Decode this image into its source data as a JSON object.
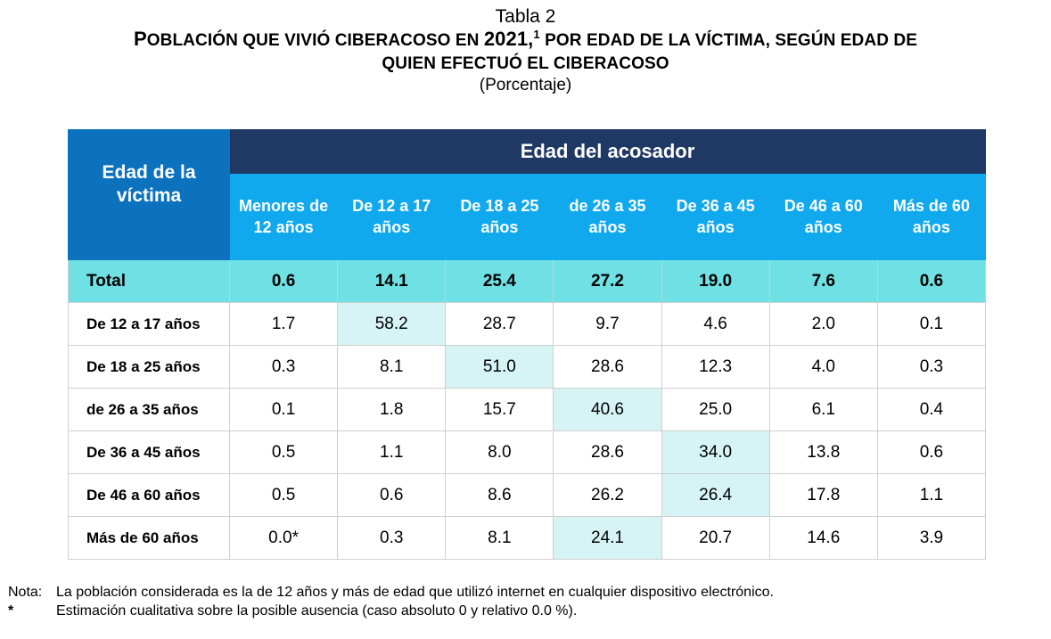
{
  "caption": {
    "number": "Tabla 2",
    "title_part1": "Población que vivió ciberacoso en 2021,",
    "title_sup": "1",
    "title_part2": " por edad de la víctima, según edad de quien efectuó el ciberacoso",
    "title_line1_a": "P",
    "title_line1_b": "OBLACIÓN QUE VIVIÓ CIBERACOSO EN ",
    "title_line1_c": "2021,",
    "title_line1_d": " POR EDAD DE LA VÍCTIMA, SEGÚN EDAD DE",
    "title_line2": "QUIEN EFECTUÓ EL CIBERACOSO",
    "subtitle": "(Porcentaje)"
  },
  "table": {
    "corner_label": "Edad de la víctima",
    "group_header": "Edad del acosador",
    "columns": [
      "Menores de 12 años",
      "De 12 a 17 años",
      "De 18 a 25 años",
      "de 26 a 35 años",
      "De 36 a 45 años",
      "De 46 a 60 años",
      "Más de 60 años"
    ],
    "total": {
      "label": "Total",
      "values": [
        "0.6",
        "14.1",
        "25.4",
        "27.2",
        "19.0",
        "7.6",
        "0.6"
      ]
    },
    "rows": [
      {
        "label": "De 12 a 17 años",
        "values": [
          "1.7",
          "58.2",
          "28.7",
          "9.7",
          "4.6",
          "2.0",
          "0.1"
        ],
        "highlight": 1
      },
      {
        "label": "De 18 a 25 años",
        "values": [
          "0.3",
          "8.1",
          "51.0",
          "28.6",
          "12.3",
          "4.0",
          "0.3"
        ],
        "highlight": 2
      },
      {
        "label": "de 26 a 35 años",
        "values": [
          "0.1",
          "1.8",
          "15.7",
          "40.6",
          "25.0",
          "6.1",
          "0.4"
        ],
        "highlight": 3
      },
      {
        "label": "De 36 a 45 años",
        "values": [
          "0.5",
          "1.1",
          "8.0",
          "28.6",
          "34.0",
          "13.8",
          "0.6"
        ],
        "highlight": 4
      },
      {
        "label": "De 46 a 60 años",
        "values": [
          "0.5",
          "0.6",
          "8.6",
          "26.2",
          "26.4",
          "17.8",
          "1.1"
        ],
        "highlight": 4
      },
      {
        "label": "Más de 60 años",
        "values": [
          "0.0*",
          "0.3",
          "8.1",
          "24.1",
          "20.7",
          "14.6",
          "3.9"
        ],
        "highlight": 3
      }
    ]
  },
  "notes": [
    {
      "mark": "Nota:",
      "text": "La población considerada es la de 12 años y más de edad que utilizó internet en cualquier dispositivo electrónico."
    },
    {
      "mark": "*",
      "text": "Estimación cualitativa sobre la posible ausencia (caso absoluto 0 y relativo 0.0 %)."
    }
  ],
  "colors": {
    "corner_blue": "#0c72be",
    "group_navy": "#1f3864",
    "column_cyan": "#10a9ee",
    "total_teal": "#6fe0e3",
    "highlight": "#d6f3f5"
  }
}
